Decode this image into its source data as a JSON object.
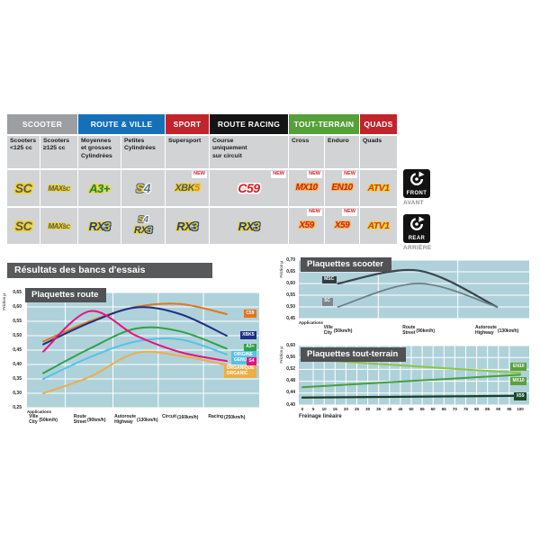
{
  "table": {
    "new_label": "NEW",
    "groups": [
      {
        "label": "SCOOTER",
        "color": "#9c9ea1"
      },
      {
        "label": "ROUTE & VILLE",
        "color": "#1670b8"
      },
      {
        "label": "SPORT",
        "color": "#c2242c"
      },
      {
        "label": "ROUTE RACING",
        "color": "#141414"
      },
      {
        "label": "TOUT-TERRAIN",
        "color": "#55a038"
      },
      {
        "label": "QUADS",
        "color": "#c2242c"
      }
    ],
    "sub": [
      "Scooters\n<125 cc",
      "Scooters\n≥125 cc",
      "Moyennes\net grosses\nCylindrées",
      "Petites\nCylindrées",
      "Supersport",
      "Course\nuniquement\nsur circuit",
      "Cross",
      "Enduro",
      "Quads"
    ],
    "front": [
      {
        "t1": "SC"
      },
      {
        "t1": "MAXI",
        "t2": "SC"
      },
      {
        "t1": "A3+"
      },
      {
        "t1": "S",
        "t2": "4"
      },
      {
        "t1": "XBK",
        "t2": "5"
      },
      {
        "t1": "C59"
      },
      {
        "t1": "MX10"
      },
      {
        "t1": "EN10"
      },
      {
        "t1": "ATV1"
      }
    ],
    "rear": [
      {
        "t1": "SC"
      },
      {
        "t1": "MAXI",
        "t2": "SC"
      },
      {
        "t1": "RX",
        "t2": "3"
      },
      {
        "a1": "S",
        "a2": "4",
        "b1": "RX",
        "b2": "3"
      },
      {
        "t1": "RX",
        "t2": "3"
      },
      {
        "t1": "RX",
        "t2": "3"
      },
      {
        "t1": "X59"
      },
      {
        "t1": "X59"
      },
      {
        "t1": "ATV1"
      }
    ]
  },
  "side_badges": {
    "front": {
      "label": "FRONT",
      "sub": "AVANT"
    },
    "rear": {
      "label": "REAR",
      "sub": "ARRIÈRE"
    }
  },
  "results": {
    "title": "Résultats des bancs d'essais"
  },
  "chart_data": [
    {
      "type": "line",
      "title": "Plaquettes route",
      "ylabel": "Friction µ",
      "xlabel": "Applications",
      "ymin": 0.25,
      "ymax": 0.65,
      "yticks": [
        "0,65",
        "0,60",
        "0,55",
        "0,50",
        "0,45",
        "0,40",
        "0,35",
        "0,30",
        "0,25"
      ],
      "xstops": [
        0.07,
        0.27,
        0.47,
        0.66,
        0.86
      ],
      "vlines": [
        0.165,
        0.37,
        0.565,
        0.76
      ],
      "xticks": [
        {
          "l1": "Ville",
          "l2": "City",
          "speed": "(50km/h)"
        },
        {
          "l1": "Route",
          "l2": "Street",
          "speed": "(90km/h)"
        },
        {
          "l1": "Autoroute",
          "l2": "Highway",
          "speed": "(130km/h)"
        },
        {
          "l1": "Circuit",
          "speed": "(160km/h)"
        },
        {
          "l1": "Racing",
          "speed": "(250km/h)"
        }
      ],
      "series": [
        {
          "name": "C59",
          "color": "#e2751d",
          "lw": 2,
          "values": [
            0.48,
            0.55,
            0.6,
            0.61,
            0.575
          ],
          "label": {
            "text": "C59",
            "bg": "#e2751d",
            "y": 0.575
          }
        },
        {
          "name": "XBK5",
          "color": "#1f2f87",
          "lw": 2,
          "values": [
            0.47,
            0.545,
            0.598,
            0.575,
            0.5
          ],
          "label": {
            "text": "XBK5",
            "bg": "#1f2f87",
            "y": 0.5
          }
        },
        {
          "name": "A3+",
          "color": "#2fa14b",
          "lw": 2,
          "values": [
            0.37,
            0.455,
            0.525,
            0.515,
            0.455
          ],
          "label": {
            "text": "A3+",
            "bg": "#2fa14b",
            "y": 0.457
          }
        },
        {
          "name": "ORIGINE",
          "color": "#53c3e8",
          "lw": 2,
          "values": [
            0.35,
            0.425,
            0.48,
            0.487,
            0.435
          ],
          "label": {
            "text": "ORIGINE\nGENUINE",
            "bg": "#53c3e8",
            "y": 0.43
          }
        },
        {
          "name": "S4",
          "color": "#e6137f",
          "lw": 2,
          "values": [
            0.445,
            0.585,
            0.5,
            0.443,
            0.412
          ],
          "label": {
            "text": "S4",
            "bg": "#e6137f",
            "y": 0.408
          }
        },
        {
          "name": "ORGANIQUE",
          "color": "#ecaf45",
          "lw": 2,
          "values": [
            0.3,
            0.357,
            0.44,
            0.43,
            0.398
          ],
          "label": {
            "text": "ORGANIQUE\nORGANIC",
            "bg": "#ecaf45",
            "y": 0.382
          }
        }
      ]
    },
    {
      "type": "line",
      "title": "Plaquettes scooter",
      "ylabel": "Friction µ",
      "xlabel": "Applications",
      "ymin": 0.45,
      "ymax": 0.7,
      "yticks": [
        "0,70",
        "0,65",
        "0,60",
        "0,55",
        "0,50",
        "0,45"
      ],
      "xstops": [
        0.17,
        0.52,
        0.86
      ],
      "vlines": [
        0.345,
        0.69
      ],
      "xticks": [
        {
          "l1": "Ville",
          "l2": "City",
          "speed": "(50km/h)"
        },
        {
          "l1": "Route",
          "l2": "Street",
          "speed": "(90km/h)"
        },
        {
          "l1": "Autoroute",
          "l2": "Highway",
          "speed": "(130km/h)"
        }
      ],
      "series": [
        {
          "name": "MSC",
          "color": "#39454c",
          "lw": 2.2,
          "values": [
            0.6,
            0.655,
            0.5
          ],
          "label": {
            "text": "MSC",
            "bg": "#343c41",
            "lx": 0.1,
            "y": 0.613
          }
        },
        {
          "name": "SC",
          "color": "#6e8089",
          "lw": 1.8,
          "values": [
            0.5,
            0.6,
            0.5
          ],
          "label": {
            "text": "SC",
            "bg": "#7d868c",
            "lx": 0.1,
            "y": 0.52
          }
        }
      ]
    },
    {
      "type": "line",
      "title": "Plaquettes tout-terrain",
      "ylabel": "Friction µ",
      "xlabel": "Freinage linéaire",
      "ymin": 0.4,
      "ymax": 0.6,
      "yticks": [
        "0,60",
        "0,56",
        "0,52",
        "0,48",
        "0,44",
        "0,40"
      ],
      "xpad": [
        4,
        10
      ],
      "xnums": [
        "0",
        "5",
        "10",
        "15",
        "20",
        "25",
        "30",
        "35",
        "40",
        "45",
        "50",
        "55",
        "60",
        "65",
        "70",
        "75",
        "80",
        "85",
        "90",
        "95",
        "100"
      ],
      "series": [
        {
          "name": "EN10",
          "color": "#8dc63f",
          "lw": 2,
          "x": [
            0,
            50,
            100
          ],
          "values": [
            0.555,
            0.531,
            0.508
          ],
          "label": {
            "text": "EN10",
            "bg": "#5aa13c",
            "y": 0.527
          }
        },
        {
          "name": "MX10",
          "color": "#44a13d",
          "lw": 2,
          "x": [
            0,
            50,
            100
          ],
          "values": [
            0.46,
            0.481,
            0.502
          ],
          "label": {
            "text": "MX10",
            "bg": "#5aa13c",
            "y": 0.478
          }
        },
        {
          "name": "X59",
          "color": "#173f26",
          "lw": 2.2,
          "x": [
            0,
            50,
            100
          ],
          "values": [
            0.425,
            0.428,
            0.431
          ],
          "label": {
            "text": "X59",
            "bg": "#1c4a2a",
            "y": 0.427
          }
        }
      ]
    }
  ]
}
